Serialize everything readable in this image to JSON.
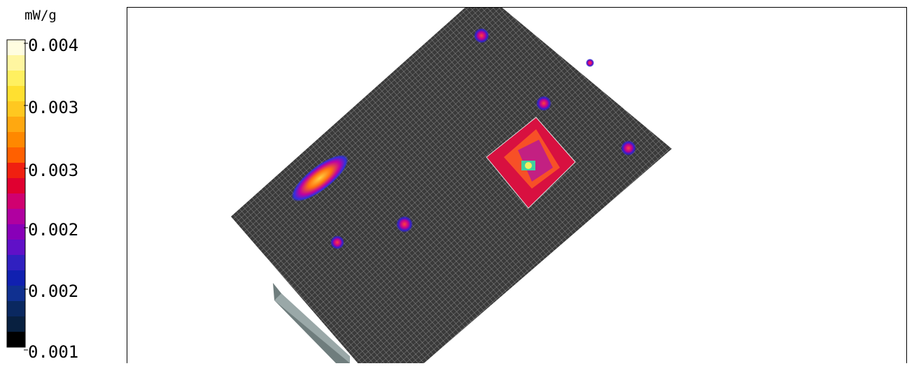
{
  "legend": {
    "unit": "mW/g",
    "labels": [
      "0.004",
      "0.003",
      "0.003",
      "0.002",
      "0.002",
      "0.001"
    ]
  }
}
